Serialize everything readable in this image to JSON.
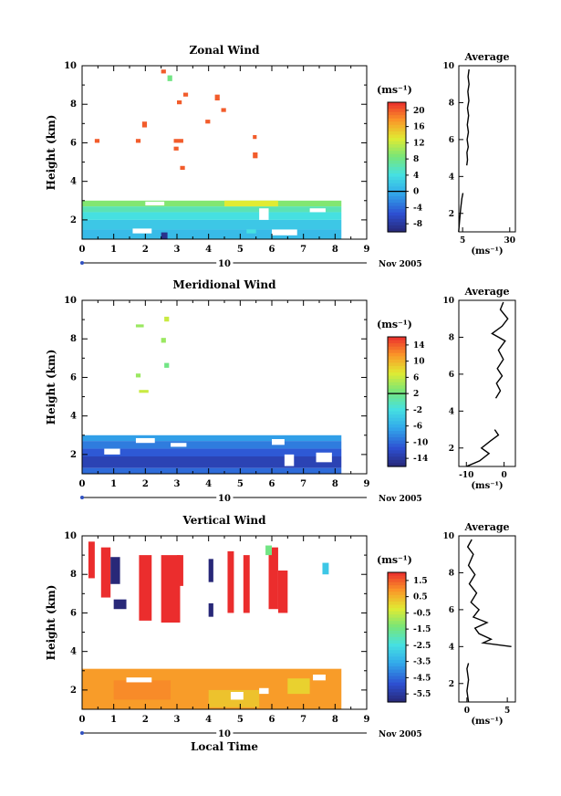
{
  "chart_data": [
    {
      "type": "heatmap",
      "title": "Zonal Wind",
      "ylabel": "Height (km)",
      "date_label": "Nov 2005",
      "day_label": "10",
      "xlabel": "",
      "xlim": [
        0,
        9
      ],
      "ylim": [
        1,
        10
      ],
      "x_ticks": [
        "0",
        "1",
        "2",
        "3",
        "4",
        "5",
        "6",
        "7",
        "8",
        "9"
      ],
      "y_ticks": [
        "2",
        "4",
        "6",
        "8",
        "10"
      ],
      "colorbar": {
        "unit": "(ms⁻¹)",
        "ticks": [
          "20",
          "16",
          "12",
          "8",
          "4",
          "0",
          "-4",
          "-8"
        ],
        "range": [
          -10,
          22
        ],
        "mark_value": 0
      },
      "profile": {
        "title": "Average",
        "xlabel": "(ms⁻¹)",
        "xlim": [
          3,
          33
        ],
        "x_ticks": [
          "5",
          "30"
        ],
        "x_tick_values": [
          5,
          30
        ],
        "y_ticks": [
          "2",
          "4",
          "6",
          "8",
          "10"
        ],
        "upper": [
          [
            7.2,
            4.6
          ],
          [
            7.6,
            4.9
          ],
          [
            7.3,
            5.3
          ],
          [
            8.0,
            5.6
          ],
          [
            7.4,
            6.0
          ],
          [
            8.1,
            6.4
          ],
          [
            7.5,
            6.8
          ],
          [
            8.2,
            7.3
          ],
          [
            7.6,
            7.7
          ],
          [
            8.3,
            8.1
          ],
          [
            7.8,
            8.6
          ],
          [
            8.4,
            9.0
          ],
          [
            7.9,
            9.4
          ],
          [
            8.4,
            9.8
          ]
        ],
        "lower": [
          [
            2.9,
            1.0
          ],
          [
            3.4,
            1.6
          ],
          [
            3.9,
            2.2
          ],
          [
            4.6,
            2.8
          ],
          [
            5.2,
            3.1
          ]
        ]
      },
      "zones": [
        {
          "x0": 0.0,
          "x1": 8.2,
          "y0": 2.7,
          "y1": 3.0,
          "value": 9
        },
        {
          "x0": 0.0,
          "x1": 8.2,
          "y0": 2.4,
          "y1": 2.7,
          "value": 6
        },
        {
          "x0": 0.0,
          "x1": 8.2,
          "y0": 2.0,
          "y1": 2.4,
          "value": 4
        },
        {
          "x0": 0.0,
          "x1": 8.2,
          "y0": 1.5,
          "y1": 2.0,
          "value": 2
        },
        {
          "x0": 0.0,
          "x1": 8.2,
          "y0": 1.0,
          "y1": 1.5,
          "value": 1
        },
        {
          "x0": 4.5,
          "x1": 6.2,
          "y0": 2.7,
          "y1": 3.0,
          "value": 13
        }
      ],
      "blobs": [
        {
          "x": 2.5,
          "y": 9.6,
          "w": 0.15,
          "h": 0.2,
          "value": 20
        },
        {
          "x": 2.7,
          "y": 9.2,
          "w": 0.15,
          "h": 0.3,
          "value": 8
        },
        {
          "x": 3.2,
          "y": 8.4,
          "w": 0.15,
          "h": 0.2,
          "value": 20
        },
        {
          "x": 3.0,
          "y": 8.0,
          "w": 0.15,
          "h": 0.2,
          "value": 20
        },
        {
          "x": 4.2,
          "y": 8.2,
          "w": 0.15,
          "h": 0.3,
          "value": 20
        },
        {
          "x": 4.4,
          "y": 7.6,
          "w": 0.15,
          "h": 0.2,
          "value": 20
        },
        {
          "x": 3.9,
          "y": 7.0,
          "w": 0.15,
          "h": 0.2,
          "value": 20
        },
        {
          "x": 1.9,
          "y": 6.8,
          "w": 0.15,
          "h": 0.3,
          "value": 20
        },
        {
          "x": 1.7,
          "y": 6.0,
          "w": 0.15,
          "h": 0.2,
          "value": 20
        },
        {
          "x": 0.4,
          "y": 6.0,
          "w": 0.15,
          "h": 0.2,
          "value": 20
        },
        {
          "x": 2.9,
          "y": 6.0,
          "w": 0.3,
          "h": 0.2,
          "value": 20
        },
        {
          "x": 2.9,
          "y": 5.6,
          "w": 0.15,
          "h": 0.2,
          "value": 20
        },
        {
          "x": 3.1,
          "y": 4.6,
          "w": 0.15,
          "h": 0.2,
          "value": 20
        },
        {
          "x": 5.4,
          "y": 5.2,
          "w": 0.15,
          "h": 0.3,
          "value": 20
        },
        {
          "x": 5.4,
          "y": 6.2,
          "w": 0.12,
          "h": 0.2,
          "value": 20
        },
        {
          "x": 2.5,
          "y": 1.0,
          "w": 0.2,
          "h": 0.35,
          "value": -9
        },
        {
          "x": 5.2,
          "y": 1.3,
          "w": 0.3,
          "h": 0.2,
          "value": 4
        }
      ],
      "gaps": [
        {
          "x": 2.0,
          "y": 2.75,
          "w": 0.6,
          "h": 0.2
        },
        {
          "x": 1.6,
          "y": 1.3,
          "w": 0.6,
          "h": 0.25
        },
        {
          "x": 5.6,
          "y": 2.0,
          "w": 0.3,
          "h": 0.6
        },
        {
          "x": 6.0,
          "y": 1.2,
          "w": 0.8,
          "h": 0.3
        },
        {
          "x": 7.2,
          "y": 2.4,
          "w": 0.5,
          "h": 0.2
        }
      ]
    },
    {
      "type": "heatmap",
      "title": "Meridional Wind",
      "ylabel": "Height (km)",
      "date_label": "Nov 2005",
      "day_label": "10",
      "xlabel": "",
      "xlim": [
        0,
        9
      ],
      "ylim": [
        1,
        10
      ],
      "x_ticks": [
        "0",
        "1",
        "2",
        "3",
        "4",
        "5",
        "6",
        "7",
        "8",
        "9"
      ],
      "y_ticks": [
        "2",
        "4",
        "6",
        "8",
        "10"
      ],
      "colorbar": {
        "unit": "(ms⁻¹)",
        "ticks": [
          "14",
          "10",
          "6",
          "2",
          "-2",
          "-6",
          "-10",
          "-14"
        ],
        "range": [
          -16,
          16
        ],
        "mark_value": 2
      },
      "profile": {
        "title": "Average",
        "xlabel": "(ms⁻¹)",
        "xlim": [
          -12,
          3
        ],
        "x_ticks": [
          "-10",
          "0"
        ],
        "x_tick_values": [
          -10,
          0
        ],
        "y_ticks": [
          "2",
          "4",
          "6",
          "8",
          "10"
        ],
        "upper": [
          [
            -2.2,
            4.7
          ],
          [
            -1.0,
            5.1
          ],
          [
            -2.0,
            5.5
          ],
          [
            -0.5,
            5.9
          ],
          [
            -1.8,
            6.3
          ],
          [
            -0.2,
            6.8
          ],
          [
            -1.5,
            7.3
          ],
          [
            0.3,
            7.8
          ],
          [
            -3.2,
            8.2
          ],
          [
            -0.5,
            8.6
          ],
          [
            1.0,
            9.0
          ],
          [
            -1.0,
            9.5
          ],
          [
            -0.2,
            9.9
          ]
        ],
        "lower": [
          [
            -10.0,
            1.0
          ],
          [
            -6.5,
            1.3
          ],
          [
            -4.0,
            1.7
          ],
          [
            -6.0,
            2.0
          ],
          [
            -3.5,
            2.4
          ],
          [
            -1.5,
            2.7
          ],
          [
            -2.5,
            3.0
          ]
        ]
      },
      "zones": [
        {
          "x0": 0.0,
          "x1": 8.2,
          "y0": 2.7,
          "y1": 3.0,
          "value": -7
        },
        {
          "x0": 0.0,
          "x1": 8.2,
          "y0": 2.3,
          "y1": 2.7,
          "value": -9
        },
        {
          "x0": 0.0,
          "x1": 8.2,
          "y0": 1.9,
          "y1": 2.3,
          "value": -11
        },
        {
          "x0": 0.0,
          "x1": 8.2,
          "y0": 1.3,
          "y1": 1.9,
          "value": -13
        },
        {
          "x0": 0.0,
          "x1": 8.2,
          "y0": 1.0,
          "y1": 1.3,
          "value": -10
        }
      ],
      "blobs": [
        {
          "x": 1.7,
          "y": 8.6,
          "w": 0.25,
          "h": 0.15,
          "value": 4
        },
        {
          "x": 2.6,
          "y": 8.9,
          "w": 0.15,
          "h": 0.25,
          "value": 6
        },
        {
          "x": 2.5,
          "y": 7.8,
          "w": 0.15,
          "h": 0.25,
          "value": 4
        },
        {
          "x": 2.6,
          "y": 6.5,
          "w": 0.15,
          "h": 0.25,
          "value": 2
        },
        {
          "x": 1.7,
          "y": 6.0,
          "w": 0.15,
          "h": 0.2,
          "value": 4
        },
        {
          "x": 1.8,
          "y": 5.2,
          "w": 0.3,
          "h": 0.15,
          "value": 6
        }
      ],
      "gaps": [
        {
          "x": 0.7,
          "y": 2.0,
          "w": 0.5,
          "h": 0.3
        },
        {
          "x": 1.7,
          "y": 2.6,
          "w": 0.6,
          "h": 0.25
        },
        {
          "x": 2.8,
          "y": 2.4,
          "w": 0.5,
          "h": 0.2
        },
        {
          "x": 6.4,
          "y": 1.4,
          "w": 0.3,
          "h": 0.6
        },
        {
          "x": 7.4,
          "y": 1.6,
          "w": 0.5,
          "h": 0.5
        },
        {
          "x": 6.0,
          "y": 2.5,
          "w": 0.4,
          "h": 0.3
        }
      ]
    },
    {
      "type": "heatmap",
      "title": "Vertical Wind",
      "ylabel": "Height (km)",
      "date_label": "Nov 2005",
      "day_label": "10",
      "xlabel": "Local Time",
      "xlim": [
        0,
        9
      ],
      "ylim": [
        1,
        10
      ],
      "x_ticks": [
        "0",
        "1",
        "2",
        "3",
        "4",
        "5",
        "6",
        "7",
        "8",
        "9"
      ],
      "y_ticks": [
        "2",
        "4",
        "6",
        "8",
        "10"
      ],
      "colorbar": {
        "unit": "(ms⁻¹)",
        "ticks": [
          "1.5",
          "0.5",
          "-0.5",
          "-1.5",
          "-2.5",
          "-3.5",
          "-4.5",
          "-5.5"
        ],
        "range": [
          -6,
          2
        ]
      },
      "profile": {
        "title": "Average",
        "xlabel": "(ms⁻¹)",
        "xlim": [
          -1,
          6
        ],
        "x_ticks": [
          "0",
          "5"
        ],
        "x_tick_values": [
          0,
          5
        ],
        "y_ticks": [
          "2",
          "4",
          "6",
          "8",
          "10"
        ],
        "upper": [
          [
            5.5,
            4.0
          ],
          [
            2.0,
            4.2
          ],
          [
            3.0,
            4.4
          ],
          [
            1.5,
            4.7
          ],
          [
            1.0,
            5.0
          ],
          [
            2.5,
            5.3
          ],
          [
            0.8,
            5.6
          ],
          [
            1.5,
            6.0
          ],
          [
            0.5,
            6.4
          ],
          [
            1.2,
            6.9
          ],
          [
            0.3,
            7.4
          ],
          [
            1.0,
            7.9
          ],
          [
            0.2,
            8.4
          ],
          [
            0.8,
            9.0
          ],
          [
            0.1,
            9.4
          ],
          [
            0.6,
            9.8
          ]
        ],
        "lower": [
          [
            0.2,
            1.0
          ],
          [
            0.0,
            1.6
          ],
          [
            0.2,
            2.2
          ],
          [
            0.0,
            2.8
          ],
          [
            0.2,
            3.1
          ]
        ]
      },
      "zones": [
        {
          "x0": 0.0,
          "x1": 8.2,
          "y0": 1.0,
          "y1": 3.1,
          "value": 0.8
        },
        {
          "x0": 1.0,
          "x1": 2.8,
          "y0": 1.5,
          "y1": 2.5,
          "value": 1.0
        },
        {
          "x0": 4.0,
          "x1": 5.6,
          "y0": 1.1,
          "y1": 2.0,
          "value": 0.3
        },
        {
          "x0": 6.5,
          "x1": 7.2,
          "y0": 1.8,
          "y1": 2.6,
          "value": 0.1
        }
      ],
      "blobs": [
        {
          "x": 0.2,
          "y": 7.8,
          "w": 0.2,
          "h": 1.9,
          "value": 2
        },
        {
          "x": 0.6,
          "y": 6.8,
          "w": 0.3,
          "h": 2.6,
          "value": 2
        },
        {
          "x": 0.9,
          "y": 7.5,
          "w": 0.3,
          "h": 1.4,
          "value": -6
        },
        {
          "x": 1.0,
          "y": 6.2,
          "w": 0.4,
          "h": 0.5,
          "value": -6
        },
        {
          "x": 1.8,
          "y": 5.6,
          "w": 0.4,
          "h": 3.4,
          "value": 2
        },
        {
          "x": 2.5,
          "y": 5.5,
          "w": 0.6,
          "h": 3.5,
          "value": 2
        },
        {
          "x": 3.0,
          "y": 7.4,
          "w": 0.2,
          "h": 1.6,
          "value": 2
        },
        {
          "x": 4.0,
          "y": 7.6,
          "w": 0.15,
          "h": 1.2,
          "value": -6
        },
        {
          "x": 4.0,
          "y": 5.8,
          "w": 0.15,
          "h": 0.7,
          "value": -6
        },
        {
          "x": 4.6,
          "y": 6.0,
          "w": 0.2,
          "h": 3.2,
          "value": 2
        },
        {
          "x": 5.1,
          "y": 6.0,
          "w": 0.2,
          "h": 3.0,
          "value": 2
        },
        {
          "x": 5.9,
          "y": 6.2,
          "w": 0.3,
          "h": 3.2,
          "value": 2
        },
        {
          "x": 6.2,
          "y": 6.0,
          "w": 0.3,
          "h": 2.2,
          "value": 2
        },
        {
          "x": 7.6,
          "y": 8.0,
          "w": 0.2,
          "h": 0.6,
          "value": -3
        },
        {
          "x": 5.8,
          "y": 9.0,
          "w": 0.2,
          "h": 0.5,
          "value": -1.5
        }
      ],
      "gaps": [
        {
          "x": 1.4,
          "y": 2.4,
          "w": 0.8,
          "h": 0.25
        },
        {
          "x": 4.7,
          "y": 1.5,
          "w": 0.4,
          "h": 0.4
        },
        {
          "x": 5.6,
          "y": 1.8,
          "w": 0.3,
          "h": 0.3
        },
        {
          "x": 7.3,
          "y": 2.5,
          "w": 0.4,
          "h": 0.3
        }
      ]
    }
  ]
}
